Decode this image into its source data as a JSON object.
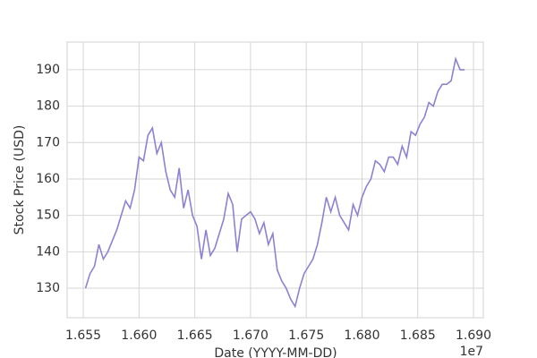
{
  "chart_data": {
    "type": "line",
    "xlabel": "Date (YYYY-MM-DD)",
    "ylabel": "Stock Price (USD)",
    "x_offset_label": "1e7",
    "x": [
      16552000,
      16556000,
      16560000,
      16564000,
      16568000,
      16572000,
      16576000,
      16580000,
      16584000,
      16588000,
      16592000,
      16596000,
      16600000,
      16604000,
      16608000,
      16612000,
      16616000,
      16620000,
      16624000,
      16628000,
      16632000,
      16636000,
      16640000,
      16644000,
      16648000,
      16652000,
      16656000,
      16660000,
      16664000,
      16668000,
      16672000,
      16676000,
      16680000,
      16684000,
      16688000,
      16692000,
      16696000,
      16700000,
      16704000,
      16708000,
      16712000,
      16716000,
      16720000,
      16724000,
      16728000,
      16732000,
      16736000,
      16740000,
      16744000,
      16748000,
      16752000,
      16756000,
      16760000,
      16764000,
      16768000,
      16772000,
      16776000,
      16780000,
      16784000,
      16788000,
      16792000,
      16796000,
      16800000,
      16804000,
      16808000,
      16812000,
      16816000,
      16820000,
      16824000,
      16828000,
      16832000,
      16836000,
      16840000,
      16844000,
      16848000,
      16852000,
      16856000,
      16860000,
      16864000,
      16868000,
      16872000,
      16876000,
      16880000,
      16884000,
      16888000,
      16892000
    ],
    "series": [
      {
        "color": "#8f80d2",
        "values": [
          130,
          134,
          136,
          142,
          138,
          140,
          143,
          146,
          150,
          154,
          152,
          157,
          166,
          165,
          172,
          174,
          167,
          170,
          162,
          157,
          155,
          163,
          152,
          157,
          150,
          147,
          138,
          146,
          139,
          141,
          145,
          149,
          156,
          153,
          140,
          149,
          150,
          151,
          149,
          145,
          148,
          142,
          145,
          135,
          132,
          130,
          127,
          125,
          130,
          134,
          136,
          138,
          142,
          148,
          155,
          151,
          155,
          150,
          148,
          146,
          153,
          150,
          155,
          158,
          160,
          165,
          164,
          162,
          166,
          166,
          164,
          169,
          166,
          173,
          172,
          175,
          177,
          181,
          180,
          184,
          186,
          186,
          187,
          193,
          190,
          190
        ]
      }
    ],
    "xlim": [
      16535500,
      16908800
    ],
    "ylim": [
      121.9,
      197.6
    ],
    "xticks": [
      {
        "value": 16550000,
        "label": "1.655"
      },
      {
        "value": 16600000,
        "label": "1.660"
      },
      {
        "value": 16650000,
        "label": "1.665"
      },
      {
        "value": 16700000,
        "label": "1.670"
      },
      {
        "value": 16750000,
        "label": "1.675"
      },
      {
        "value": 16800000,
        "label": "1.680"
      },
      {
        "value": 16850000,
        "label": "1.685"
      },
      {
        "value": 16900000,
        "label": "1.690"
      }
    ],
    "yticks": [
      130,
      140,
      150,
      160,
      170,
      180,
      190
    ],
    "grid": true
  }
}
